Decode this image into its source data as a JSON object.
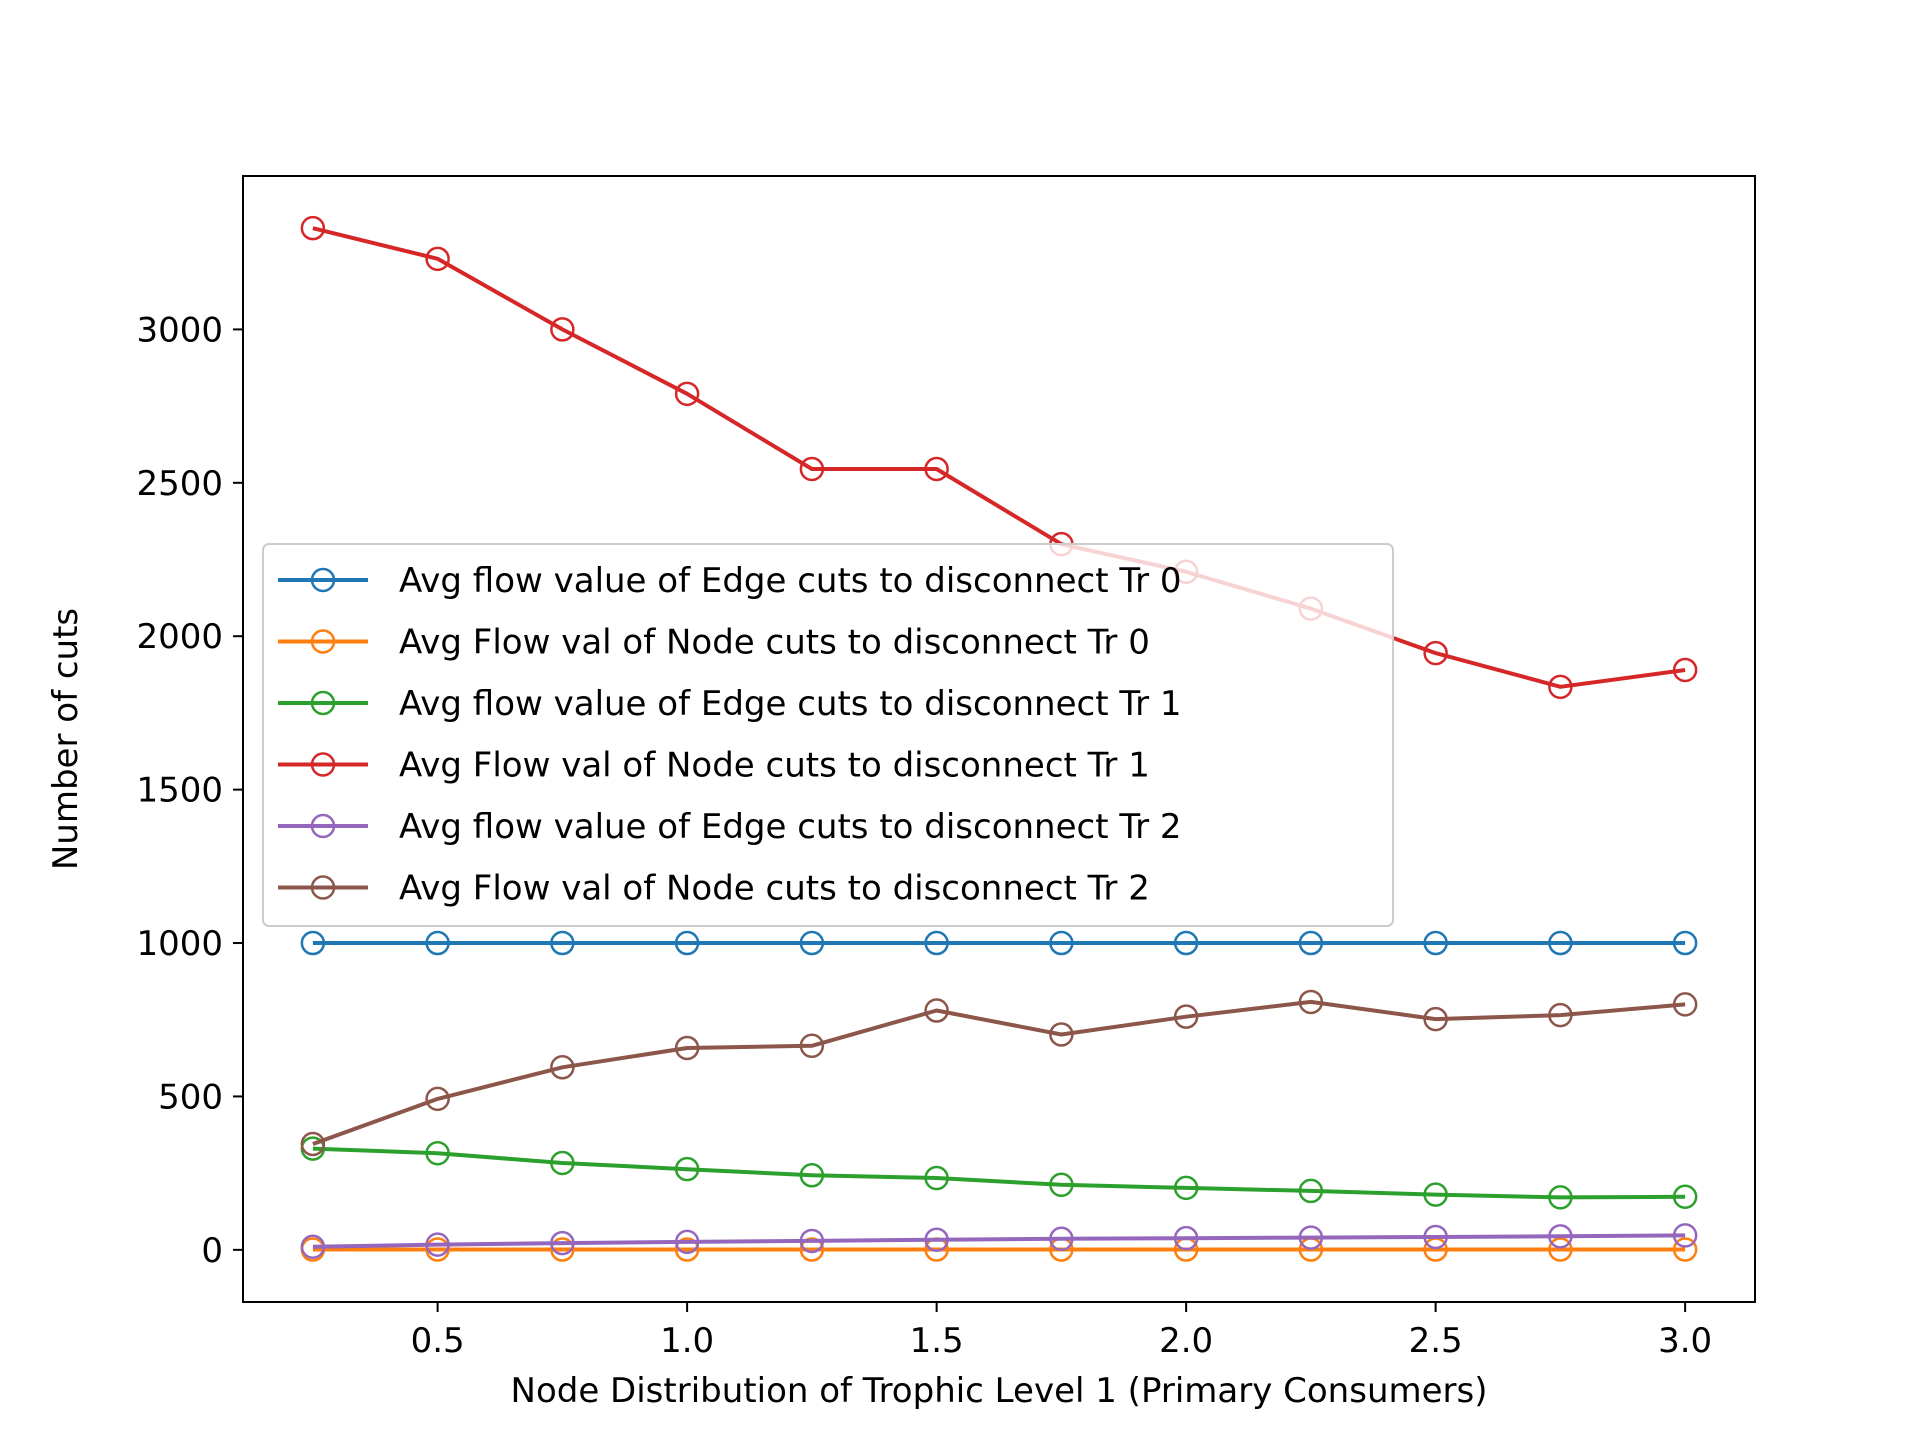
{
  "chart_data": {
    "type": "line",
    "title": "",
    "xlabel": "Node Distribution of Trophic Level 1 (Primary Consumers)",
    "ylabel": "Number of cuts",
    "xlim": [
      0.11,
      3.14
    ],
    "ylim": [
      -170,
      3500
    ],
    "xticks": [
      0.5,
      1.0,
      1.5,
      2.0,
      2.5,
      3.0
    ],
    "xtick_labels": [
      "0.5",
      "1.0",
      "1.5",
      "2.0",
      "2.5",
      "3.0"
    ],
    "yticks": [
      0,
      500,
      1000,
      1500,
      2000,
      2500,
      3000
    ],
    "ytick_labels": [
      "0",
      "500",
      "1000",
      "1500",
      "2000",
      "2500",
      "3000"
    ],
    "grid": false,
    "legend_position": "center-left",
    "marker": "open-circle",
    "x": [
      0.25,
      0.5,
      0.75,
      1.0,
      1.25,
      1.5,
      1.75,
      2.0,
      2.25,
      2.5,
      2.75,
      3.0
    ],
    "series": [
      {
        "name": "Avg flow value of Edge cuts to disconnect Tr 0",
        "color": "#1f77b4",
        "values": [
          1000,
          1000,
          1000,
          1000,
          1000,
          1000,
          1000,
          1000,
          1000,
          1000,
          1000,
          1000
        ]
      },
      {
        "name": "Avg Flow val of Node cuts to disconnect Tr 0",
        "color": "#ff7f0e",
        "values": [
          1,
          1,
          1,
          1,
          1,
          1,
          1,
          1,
          1,
          1,
          1,
          1
        ]
      },
      {
        "name": "Avg flow value of Edge cuts to disconnect Tr 1",
        "color": "#2ca02c",
        "values": [
          330,
          315,
          283,
          263,
          243,
          234,
          212,
          202,
          192,
          180,
          171,
          173
        ]
      },
      {
        "name": "Avg Flow val of Node cuts to disconnect Tr 1",
        "color": "#d62728",
        "values": [
          3330,
          3230,
          3000,
          2790,
          2545,
          2545,
          2300,
          2210,
          2090,
          1945,
          1835,
          1890
        ]
      },
      {
        "name": "Avg flow value of Edge cuts to disconnect Tr 2",
        "color": "#9467bd",
        "values": [
          10,
          17,
          22,
          26,
          29,
          33,
          36,
          38,
          40,
          42,
          44,
          47
        ]
      },
      {
        "name": "Avg Flow val of Node cuts to disconnect Tr 2",
        "color": "#8c564b",
        "values": [
          345,
          492,
          595,
          658,
          665,
          780,
          702,
          760,
          808,
          752,
          765,
          800
        ]
      }
    ]
  }
}
